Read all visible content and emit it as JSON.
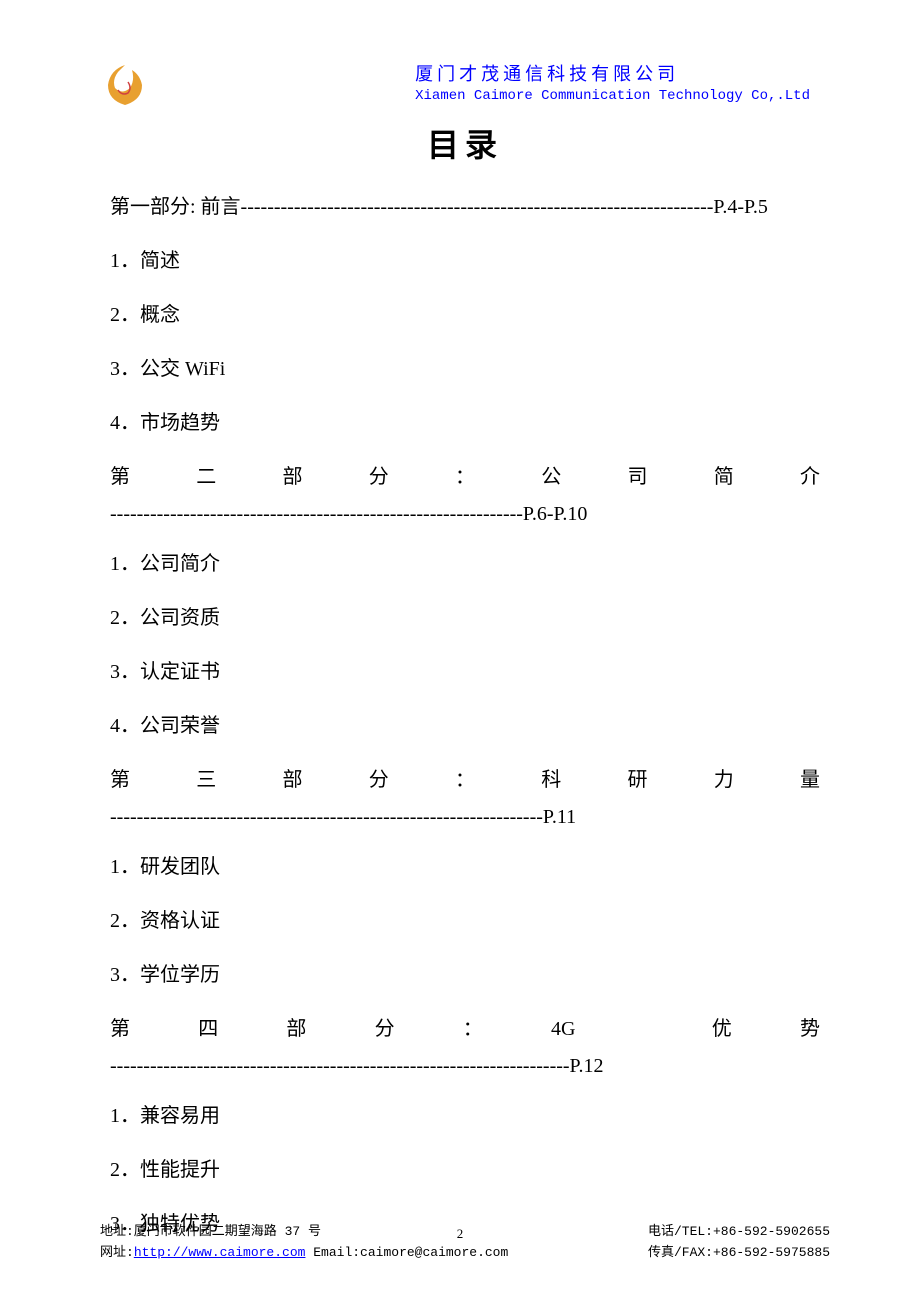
{
  "header": {
    "company_cn": "厦门才茂通信科技有限公司",
    "company_en": "Xiamen Caimore Communication Technology Co,.Ltd"
  },
  "title": "目录",
  "sections": [
    {
      "title_text": "第一部分: 前言",
      "page_ref": "P.4-P.5",
      "dashes": "-----------------------------------------------------------------------",
      "justified": false,
      "items": [
        "1．简述",
        "2．概念",
        "3．公交 WiFi",
        "4．市场趋势"
      ]
    },
    {
      "title_chars": [
        "第",
        "二",
        "部",
        "分",
        "：",
        "公",
        "司",
        "简",
        "介"
      ],
      "page_ref": "P.6-P.10",
      "dashes": "--------------------------------------------------------------",
      "justified": true,
      "items": [
        "1．公司简介",
        "2．公司资质",
        "3．认定证书",
        "4．公司荣誉"
      ]
    },
    {
      "title_chars": [
        "第",
        "三",
        "部",
        "分",
        "：",
        "科",
        "研",
        "力",
        "量"
      ],
      "page_ref": "P.11",
      "dashes": "-----------------------------------------------------------------",
      "justified": true,
      "items": [
        "1．研发团队",
        "2．资格认证",
        "3．学位学历"
      ]
    },
    {
      "title_chars": [
        "第",
        "四",
        "部",
        "分",
        "：",
        "4G",
        "",
        "优",
        "势"
      ],
      "page_ref": "P.12",
      "dashes": "---------------------------------------------------------------------",
      "justified": true,
      "items": [
        "1．兼容易用",
        "2．性能提升",
        "3．独特优势"
      ]
    }
  ],
  "footer": {
    "address": "地址:厦门市软件园二期望海路 37 号",
    "tel": "电话/TEL:+86-592-5902655",
    "web_prefix": "网址:",
    "url": "http://www.caimore.com",
    "email": " Email:caimore@caimore.com",
    "fax": "传真/FAX:+86-592-5975885",
    "page_num": "2"
  }
}
